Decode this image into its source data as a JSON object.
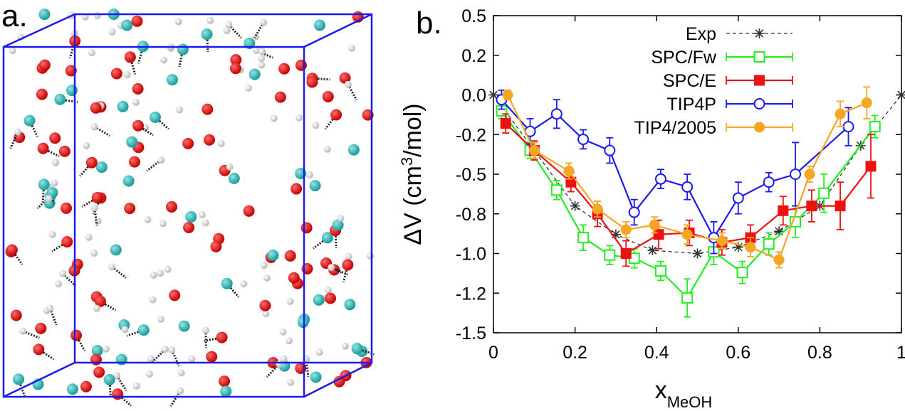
{
  "panel_a": {
    "label": "a."
  },
  "panel_b": {
    "label": "b."
  },
  "chart_data": {
    "type": "line",
    "ylabel_main": "ΔV (cm",
    "ylabel_sup": "3",
    "ylabel_end": "/mol)",
    "xlabel_main": "x",
    "xlabel_sub": "MeOH",
    "xlim": [
      0,
      1
    ],
    "ylim": [
      -1.5,
      0.5
    ],
    "x_ticks": [
      "0",
      "0.2",
      "0.4",
      "0.6",
      "0.8",
      "1"
    ],
    "y_ticks": [
      "0.5",
      "0.2",
      "0.0",
      "-0.2",
      "-0.5",
      "-0.8",
      "-1.0",
      "-1.2",
      "-1.5"
    ],
    "legend_placement": "top-right",
    "series": [
      {
        "name": "Exp",
        "color": "#333333",
        "marker": "star",
        "dashed": true,
        "x": [
          0,
          0.2,
          0.3,
          0.39,
          0.5,
          0.6,
          0.7,
          0.8,
          0.9,
          1.0
        ],
        "y": [
          0,
          -0.7,
          -0.88,
          -0.98,
          -1.0,
          -0.96,
          -0.86,
          -0.7,
          -0.32,
          0
        ],
        "err": []
      },
      {
        "name": "SPC/Fw",
        "color": "#22ee22",
        "marker": "open-square",
        "dashed": false,
        "x": [
          0.02,
          0.09,
          0.155,
          0.22,
          0.285,
          0.345,
          0.41,
          0.475,
          0.54,
          0.61,
          0.675,
          0.74,
          0.81,
          0.935
        ],
        "y": [
          -0.1,
          -0.35,
          -0.6,
          -0.9,
          -1.01,
          -1.03,
          -1.11,
          -1.28,
          -0.99,
          -1.12,
          -0.94,
          -0.8,
          -0.62,
          -0.2
        ],
        "err": [
          0.05,
          0.05,
          0.06,
          0.08,
          0.06,
          0.06,
          0.06,
          0.12,
          0.08,
          0.07,
          0.07,
          0.1,
          0.12,
          0.07
        ]
      },
      {
        "name": "SPC/E",
        "color": "#ee1111",
        "marker": "filled-square",
        "dashed": false,
        "x": [
          0.03,
          0.1,
          0.19,
          0.255,
          0.325,
          0.405,
          0.48,
          0.56,
          0.63,
          0.71,
          0.78,
          0.85,
          0.925
        ],
        "y": [
          -0.18,
          -0.35,
          -0.55,
          -0.75,
          -1.0,
          -0.88,
          -0.87,
          -0.93,
          -0.9,
          -0.73,
          -0.7,
          -0.7,
          -0.45
        ],
        "err": [
          0.06,
          0.06,
          0.06,
          0.08,
          0.08,
          0.09,
          0.08,
          0.08,
          0.08,
          0.09,
          0.1,
          0.15,
          0.2
        ]
      },
      {
        "name": "TIP4P",
        "color": "#1a1aee",
        "marker": "open-circle",
        "dashed": false,
        "x": [
          0.02,
          0.09,
          0.155,
          0.22,
          0.285,
          0.345,
          0.41,
          0.475,
          0.54,
          0.6,
          0.675,
          0.74,
          0.87
        ],
        "y": [
          -0.03,
          -0.23,
          -0.12,
          -0.28,
          -0.35,
          -0.74,
          -0.53,
          -0.58,
          -0.9,
          -0.65,
          -0.55,
          -0.5,
          -0.2
        ],
        "err": [
          0.06,
          0.08,
          0.09,
          0.06,
          0.08,
          0.08,
          0.06,
          0.08,
          0.1,
          0.1,
          0.06,
          0.2,
          0.12
        ]
      },
      {
        "name": "TIP4/2005",
        "color": "#f5a623",
        "marker": "filled-circle",
        "dashed": false,
        "x": [
          0.035,
          0.1,
          0.185,
          0.255,
          0.325,
          0.395,
          0.475,
          0.56,
          0.63,
          0.7,
          0.775,
          0.85,
          0.915
        ],
        "y": [
          0.0,
          -0.35,
          -0.48,
          -0.72,
          -0.85,
          -0.82,
          -0.88,
          -0.92,
          -0.96,
          -1.04,
          -0.5,
          -0.12,
          -0.05
        ],
        "err": [
          0.03,
          0.05,
          0.05,
          0.05,
          0.05,
          0.05,
          0.06,
          0.05,
          0.06,
          0.05,
          0.05,
          0.08,
          0.1
        ]
      }
    ]
  }
}
